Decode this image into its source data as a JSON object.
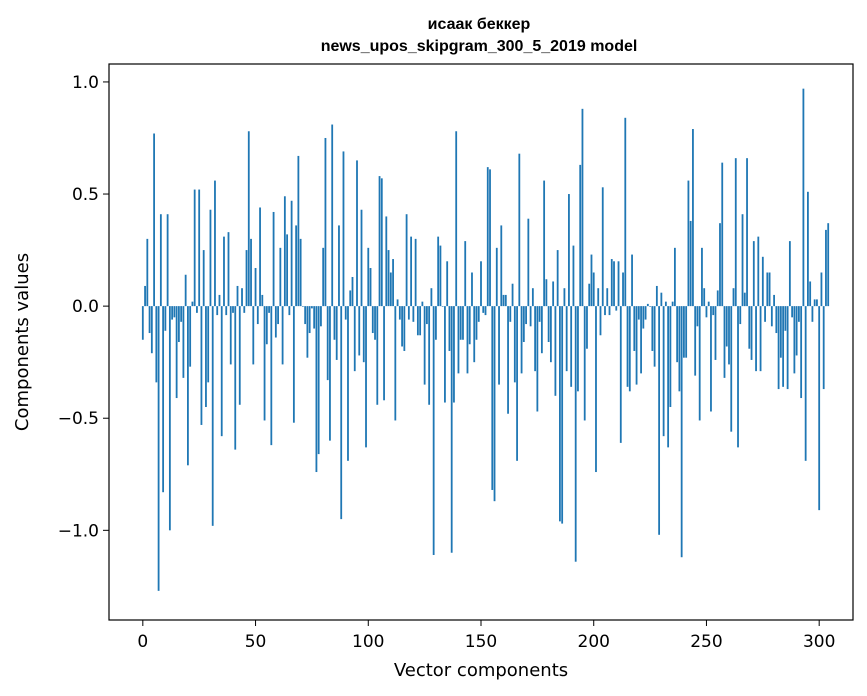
{
  "chart_data": {
    "type": "bar",
    "title": "исаак беккер",
    "subtitle": "news_upos_skipgram_300_5_2019 model",
    "xlabel": "Vector components",
    "ylabel": "Components values",
    "xlim": [
      -15,
      315
    ],
    "ylim": [
      -1.4,
      1.08
    ],
    "x_ticks": [
      0,
      50,
      100,
      150,
      200,
      250,
      300
    ],
    "x_tick_labels": [
      "0",
      "50",
      "100",
      "150",
      "200",
      "250",
      "300"
    ],
    "y_ticks": [
      -1.0,
      -0.5,
      0.0,
      0.5,
      1.0
    ],
    "y_tick_labels": [
      "−1.0",
      "−0.5",
      "0.0",
      "0.5",
      "1.0"
    ],
    "grid": false,
    "bar_color": "#1f77b4",
    "x_start": 0,
    "values": [
      -0.15,
      0.09,
      0.3,
      -0.12,
      -0.21,
      0.77,
      -0.34,
      -1.27,
      0.41,
      -0.83,
      -0.11,
      0.41,
      -1.0,
      -0.06,
      -0.05,
      -0.41,
      -0.16,
      -0.07,
      -0.32,
      0.14,
      -0.71,
      -0.27,
      0.02,
      0.52,
      -0.03,
      0.52,
      -0.53,
      0.25,
      -0.45,
      -0.34,
      0.43,
      -0.98,
      0.56,
      -0.04,
      0.05,
      -0.58,
      0.31,
      -0.04,
      0.33,
      -0.26,
      -0.03,
      -0.64,
      0.09,
      -0.44,
      0.08,
      -0.03,
      0.25,
      0.78,
      0.3,
      -0.26,
      0.17,
      -0.08,
      0.44,
      0.05,
      -0.51,
      -0.17,
      -0.03,
      -0.62,
      0.42,
      -0.14,
      -0.08,
      0.26,
      -0.26,
      0.49,
      0.32,
      -0.04,
      0.47,
      -0.52,
      0.36,
      0.67,
      0.3,
      0.0,
      -0.08,
      -0.23,
      -0.12,
      -0.01,
      -0.1,
      -0.74,
      -0.66,
      -0.09,
      0.26,
      0.75,
      -0.33,
      -0.6,
      0.81,
      -0.15,
      -0.24,
      0.36,
      -0.95,
      0.69,
      -0.06,
      -0.69,
      0.07,
      0.13,
      -0.29,
      0.65,
      -0.22,
      0.43,
      -0.25,
      -0.63,
      0.26,
      0.17,
      -0.12,
      -0.15,
      -0.44,
      0.58,
      0.57,
      -0.42,
      0.4,
      0.25,
      0.15,
      0.21,
      -0.51,
      0.03,
      -0.06,
      -0.18,
      -0.2,
      0.41,
      -0.06,
      0.31,
      -0.07,
      0.3,
      -0.13,
      -0.13,
      0.02,
      -0.35,
      -0.08,
      -0.44,
      0.08,
      -1.11,
      -0.15,
      0.31,
      0.27,
      0.0,
      -0.43,
      0.2,
      -0.2,
      -1.1,
      -0.43,
      0.78,
      -0.3,
      -0.15,
      -0.15,
      0.29,
      -0.3,
      -0.17,
      0.15,
      -0.25,
      -0.15,
      -0.07,
      0.2,
      -0.03,
      -0.04,
      0.62,
      0.61,
      -0.82,
      -0.87,
      0.26,
      -0.35,
      0.36,
      0.05,
      0.05,
      -0.48,
      -0.07,
      0.1,
      -0.34,
      -0.69,
      0.68,
      -0.3,
      -0.16,
      -0.08,
      0.39,
      -0.09,
      0.08,
      -0.29,
      -0.47,
      -0.07,
      -0.21,
      0.56,
      0.12,
      -0.16,
      -0.25,
      0.11,
      -0.4,
      0.25,
      -0.96,
      -0.97,
      0.08,
      -0.29,
      0.5,
      -0.36,
      0.27,
      -1.14,
      -0.38,
      0.63,
      0.88,
      -0.51,
      -0.19,
      0.1,
      0.23,
      0.15,
      -0.74,
      0.08,
      -0.13,
      0.53,
      -0.04,
      0.08,
      -0.04,
      0.21,
      0.2,
      -0.02,
      0.2,
      -0.61,
      0.15,
      0.84,
      -0.36,
      -0.38,
      0.23,
      -0.2,
      -0.35,
      -0.06,
      -0.3,
      -0.1,
      -0.06,
      0.01,
      0.0,
      -0.2,
      -0.27,
      0.09,
      -1.02,
      0.06,
      -0.58,
      0.02,
      -0.63,
      -0.45,
      0.02,
      0.26,
      -0.25,
      -0.38,
      -1.12,
      -0.23,
      -0.23,
      0.56,
      0.38,
      0.79,
      -0.31,
      -0.09,
      -0.51,
      0.26,
      0.08,
      -0.05,
      0.02,
      -0.47,
      -0.04,
      -0.24,
      0.07,
      0.37,
      0.64,
      -0.32,
      -0.18,
      -0.26,
      -0.56,
      0.08,
      0.66,
      -0.63,
      -0.08,
      0.41,
      0.06,
      0.66,
      -0.19,
      -0.24,
      0.29,
      -0.29,
      0.31,
      -0.29,
      0.22,
      -0.07,
      0.15,
      0.15,
      -0.09,
      0.05,
      -0.12,
      -0.37,
      -0.23,
      -0.36,
      -0.11,
      -0.37,
      0.29,
      -0.05,
      -0.3,
      -0.22,
      -0.07,
      -0.41,
      0.97,
      -0.69,
      0.51,
      0.11,
      -0.07,
      0.03,
      0.03,
      -0.91,
      0.15,
      -0.37,
      0.34,
      0.37
    ]
  }
}
